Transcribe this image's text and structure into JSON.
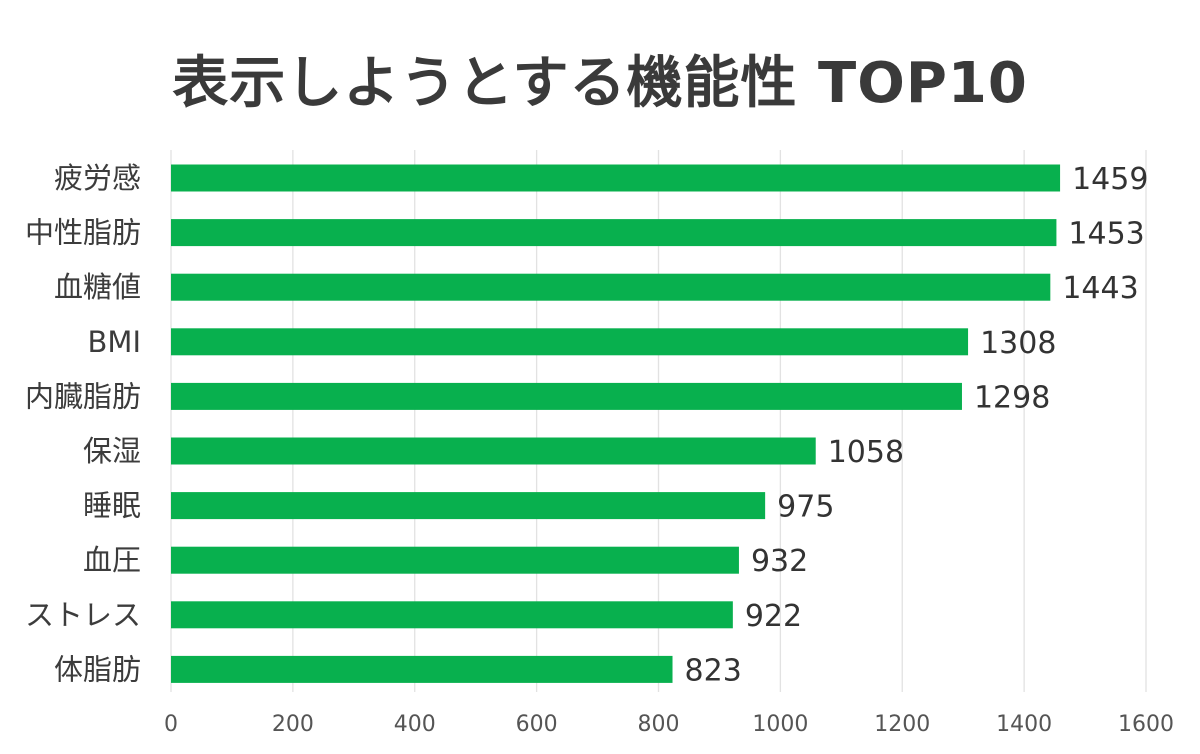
{
  "chart_data": {
    "type": "bar",
    "orientation": "horizontal",
    "title": "表示しようとする機能性 TOP10",
    "xlabel": "",
    "ylabel": "",
    "xlim": [
      0,
      1600
    ],
    "ticks": [
      "0",
      "200",
      "400",
      "600",
      "800",
      "1000",
      "1200",
      "1400",
      "1600"
    ],
    "grid": true,
    "legend": "none",
    "bar_color": "#08b04e",
    "categories": [
      "疲労感",
      "中性脂肪",
      "血糖値",
      "BMI",
      "内臓脂肪",
      "保湿",
      "睡眠",
      "血圧",
      "ストレス",
      "体脂肪"
    ],
    "values": [
      1459,
      1453,
      1443,
      1308,
      1298,
      1058,
      975,
      932,
      922,
      823
    ]
  }
}
